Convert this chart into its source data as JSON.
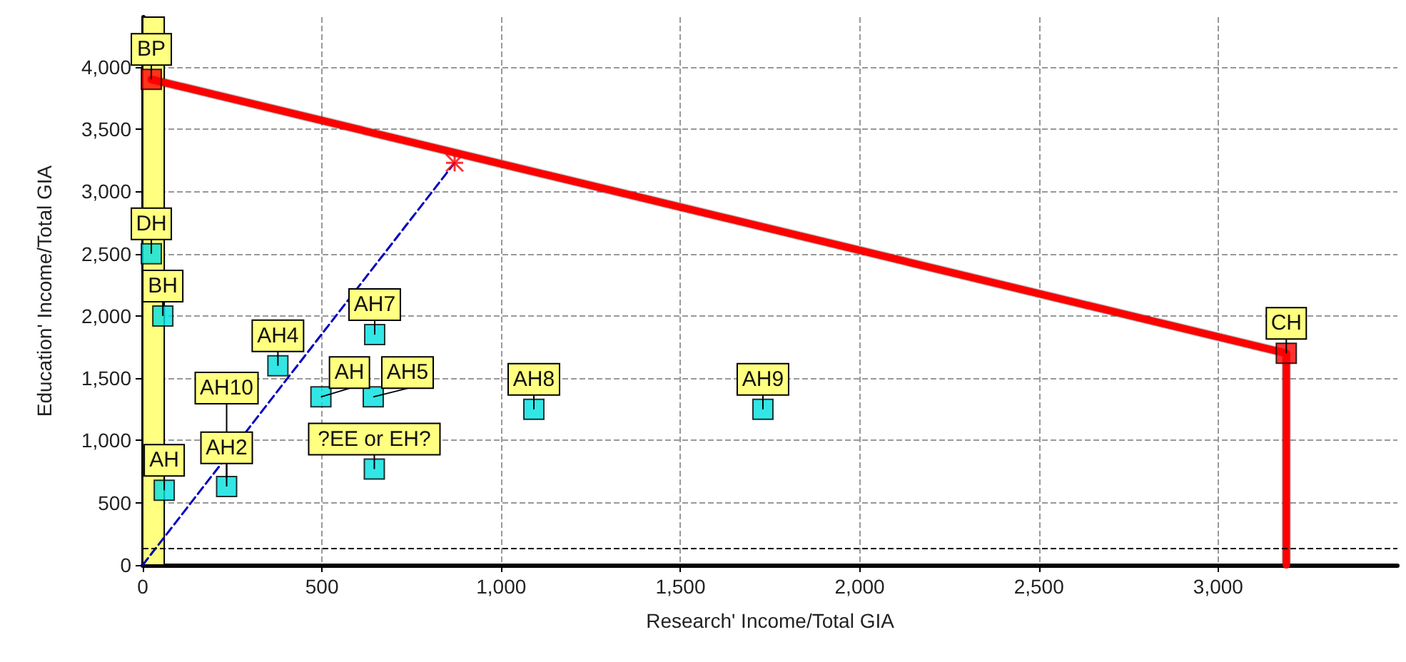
{
  "chart_data": {
    "type": "scatter",
    "xlabel": "Research' Income/Total GIA",
    "ylabel": "Education' Income/Total GIA",
    "xlim": [
      0,
      3500
    ],
    "xticks": [
      {
        "value": 0,
        "label": "0"
      },
      {
        "value": 500,
        "label": "500"
      },
      {
        "value": 1000,
        "label": "1,000"
      },
      {
        "value": 1500,
        "label": "1,500"
      },
      {
        "value": 2000,
        "label": "2,000"
      },
      {
        "value": 2500,
        "label": "2,500"
      },
      {
        "value": 3000,
        "label": "3,000"
      }
    ],
    "ylim": [
      0,
      4400
    ],
    "yticks": [
      {
        "value": 0,
        "label": "0"
      },
      {
        "value": 500,
        "label": "500"
      },
      {
        "value": 1000,
        "label": "1,000"
      },
      {
        "value": 1500,
        "label": "1,500"
      },
      {
        "value": 2000,
        "label": "2,000"
      },
      {
        "value": 2500,
        "label": "2,500"
      },
      {
        "value": 3000,
        "label": "3,000"
      },
      {
        "value": 3500,
        "label": "3,500"
      },
      {
        "value": 4000,
        "label": "4,000"
      }
    ],
    "grid": true,
    "marker": "square",
    "series": [
      {
        "type": "line",
        "color": "#ff0000",
        "x": [
          24,
          3190,
          3190
        ],
        "values": [
          3900,
          1700,
          0
        ],
        "marker": "none",
        "line_style": "solid"
      },
      {
        "type": "line",
        "color": "#0000c0",
        "x": [
          0,
          870
        ],
        "values": [
          0,
          3230
        ],
        "marker": "none",
        "line_style": "dashed"
      },
      {
        "type": "scatter",
        "color": "#ff0000",
        "x": [
          870
        ],
        "values": [
          3230
        ],
        "marker": "cross"
      },
      {
        "type": "scatter",
        "color": "#ff0000",
        "x": [
          24,
          3190
        ],
        "values": [
          3900,
          1700
        ]
      },
      {
        "type": "scatter",
        "color": "#00e0e0",
        "x": [
          24,
          56,
          377,
          647,
          497,
          643,
          646,
          60,
          234,
          1091,
          1730
        ],
        "values": [
          2500,
          2000,
          1600,
          1850,
          1350,
          1350,
          770,
          600,
          630,
          1250,
          1250
        ]
      }
    ],
    "bands": [
      {
        "axis": "x",
        "from": 0,
        "to": 60,
        "color": "#ffff80"
      }
    ],
    "ref_lines": [
      {
        "axis": "y",
        "value": 130,
        "color": "#000000",
        "line_style": "dashed"
      }
    ],
    "annotations": [
      {
        "text": "BP",
        "x": 24,
        "y": 3900
      },
      {
        "text": "CH",
        "x": 3190,
        "y": 1700
      },
      {
        "text": "DH",
        "x": 24,
        "y": 2500
      },
      {
        "text": "BH",
        "x": 56,
        "y": 2000
      },
      {
        "text": "AH4",
        "x": 377,
        "y": 1600
      },
      {
        "text": "AH7",
        "x": 647,
        "y": 1850
      },
      {
        "text": "AH",
        "x": 497,
        "y": 1350
      },
      {
        "text": "AH5",
        "x": 643,
        "y": 1350
      },
      {
        "text": "?EE or EH?",
        "x": 646,
        "y": 770
      },
      {
        "text": "AH",
        "x": 60,
        "y": 600
      },
      {
        "text": "AH2",
        "x": 234,
        "y": 700
      },
      {
        "text": "AH10",
        "x": 234,
        "y": 630
      },
      {
        "text": "AH8",
        "x": 1091,
        "y": 1250
      },
      {
        "text": "AH9",
        "x": 1730,
        "y": 1250
      }
    ]
  }
}
